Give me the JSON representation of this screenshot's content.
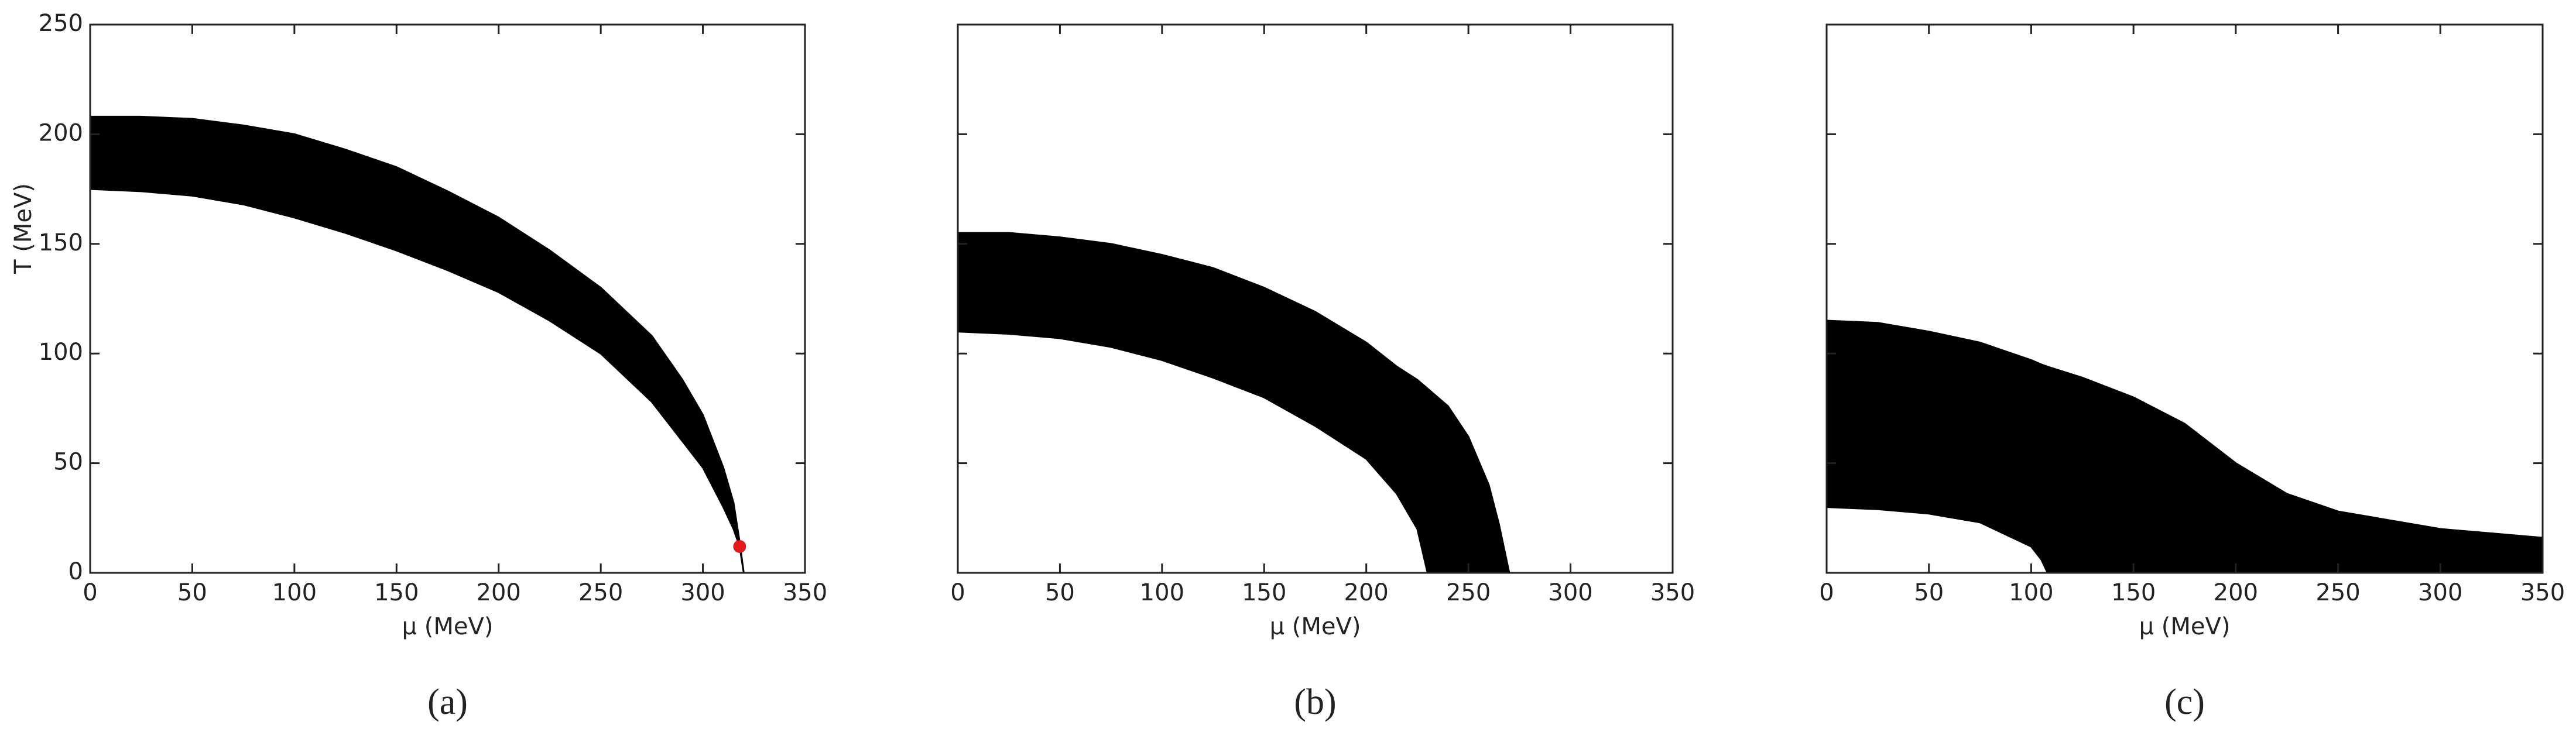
{
  "chart_data": [
    {
      "type": "band",
      "caption": "(a)",
      "xlabel": "μ (MeV)",
      "ylabel": "T (MeV)",
      "x": [
        0,
        25,
        50,
        75,
        100,
        125,
        150,
        175,
        200,
        225,
        250,
        275,
        290,
        300,
        310,
        315,
        318,
        320
      ],
      "series": [
        {
          "color": "#000000",
          "values": [
            208,
            208,
            207,
            204,
            200,
            193,
            185,
            174,
            162,
            147,
            130,
            108,
            88,
            72,
            48,
            32,
            14,
            0
          ]
        },
        {
          "color": "#000000",
          "values": [
            175,
            174,
            172,
            168,
            162,
            155,
            147,
            138,
            128,
            115,
            100,
            78,
            60,
            48,
            30,
            20,
            12,
            0
          ]
        }
      ],
      "points": [
        {
          "x": 318,
          "y": 12,
          "color": "#e31a1c"
        }
      ],
      "xlim": [
        0,
        350
      ],
      "xticks": [
        0,
        50,
        100,
        150,
        200,
        250,
        300,
        350
      ],
      "ylim": [
        0,
        250
      ],
      "yticks": [
        0,
        50,
        100,
        150,
        200,
        250
      ],
      "show_ytick_labels": true
    },
    {
      "type": "band",
      "caption": "(b)",
      "xlabel": "μ (MeV)",
      "x": [
        0,
        25,
        50,
        75,
        100,
        125,
        150,
        175,
        200,
        215,
        225,
        230,
        240,
        250,
        260,
        265,
        270
      ],
      "series": [
        {
          "color": "#000000",
          "values": [
            155,
            155,
            153,
            150,
            145,
            139,
            130,
            119,
            105,
            94,
            88,
            84,
            76,
            62,
            40,
            22,
            0
          ]
        },
        {
          "color": "#000000",
          "values": [
            110,
            109,
            107,
            103,
            97,
            89,
            80,
            67,
            52,
            36,
            20,
            0,
            0,
            0,
            0,
            0,
            0
          ]
        }
      ],
      "xlim": [
        0,
        350
      ],
      "xticks": [
        0,
        50,
        100,
        150,
        200,
        250,
        300,
        350
      ],
      "ylim": [
        0,
        250
      ],
      "yticks": [
        0,
        50,
        100,
        150,
        200,
        250
      ],
      "show_ytick_labels": false
    },
    {
      "type": "band",
      "caption": "(c)",
      "xlabel": "μ (MeV)",
      "x": [
        0,
        25,
        50,
        75,
        100,
        105,
        108,
        125,
        150,
        175,
        200,
        225,
        250,
        275,
        300,
        325,
        350
      ],
      "series": [
        {
          "color": "#000000",
          "values": [
            115,
            114,
            110,
            105,
            97,
            95,
            94,
            89,
            80,
            68,
            50,
            36,
            28,
            24,
            20,
            18,
            16
          ]
        },
        {
          "color": "#000000",
          "values": [
            30,
            29,
            27,
            23,
            12,
            6,
            0,
            0,
            0,
            0,
            0,
            0,
            0,
            0,
            0,
            0,
            0
          ]
        }
      ],
      "xlim": [
        0,
        350
      ],
      "xticks": [
        0,
        50,
        100,
        150,
        200,
        250,
        300,
        350
      ],
      "ylim": [
        0,
        250
      ],
      "yticks": [
        0,
        50,
        100,
        150,
        200,
        250
      ],
      "show_ytick_labels": false
    }
  ]
}
